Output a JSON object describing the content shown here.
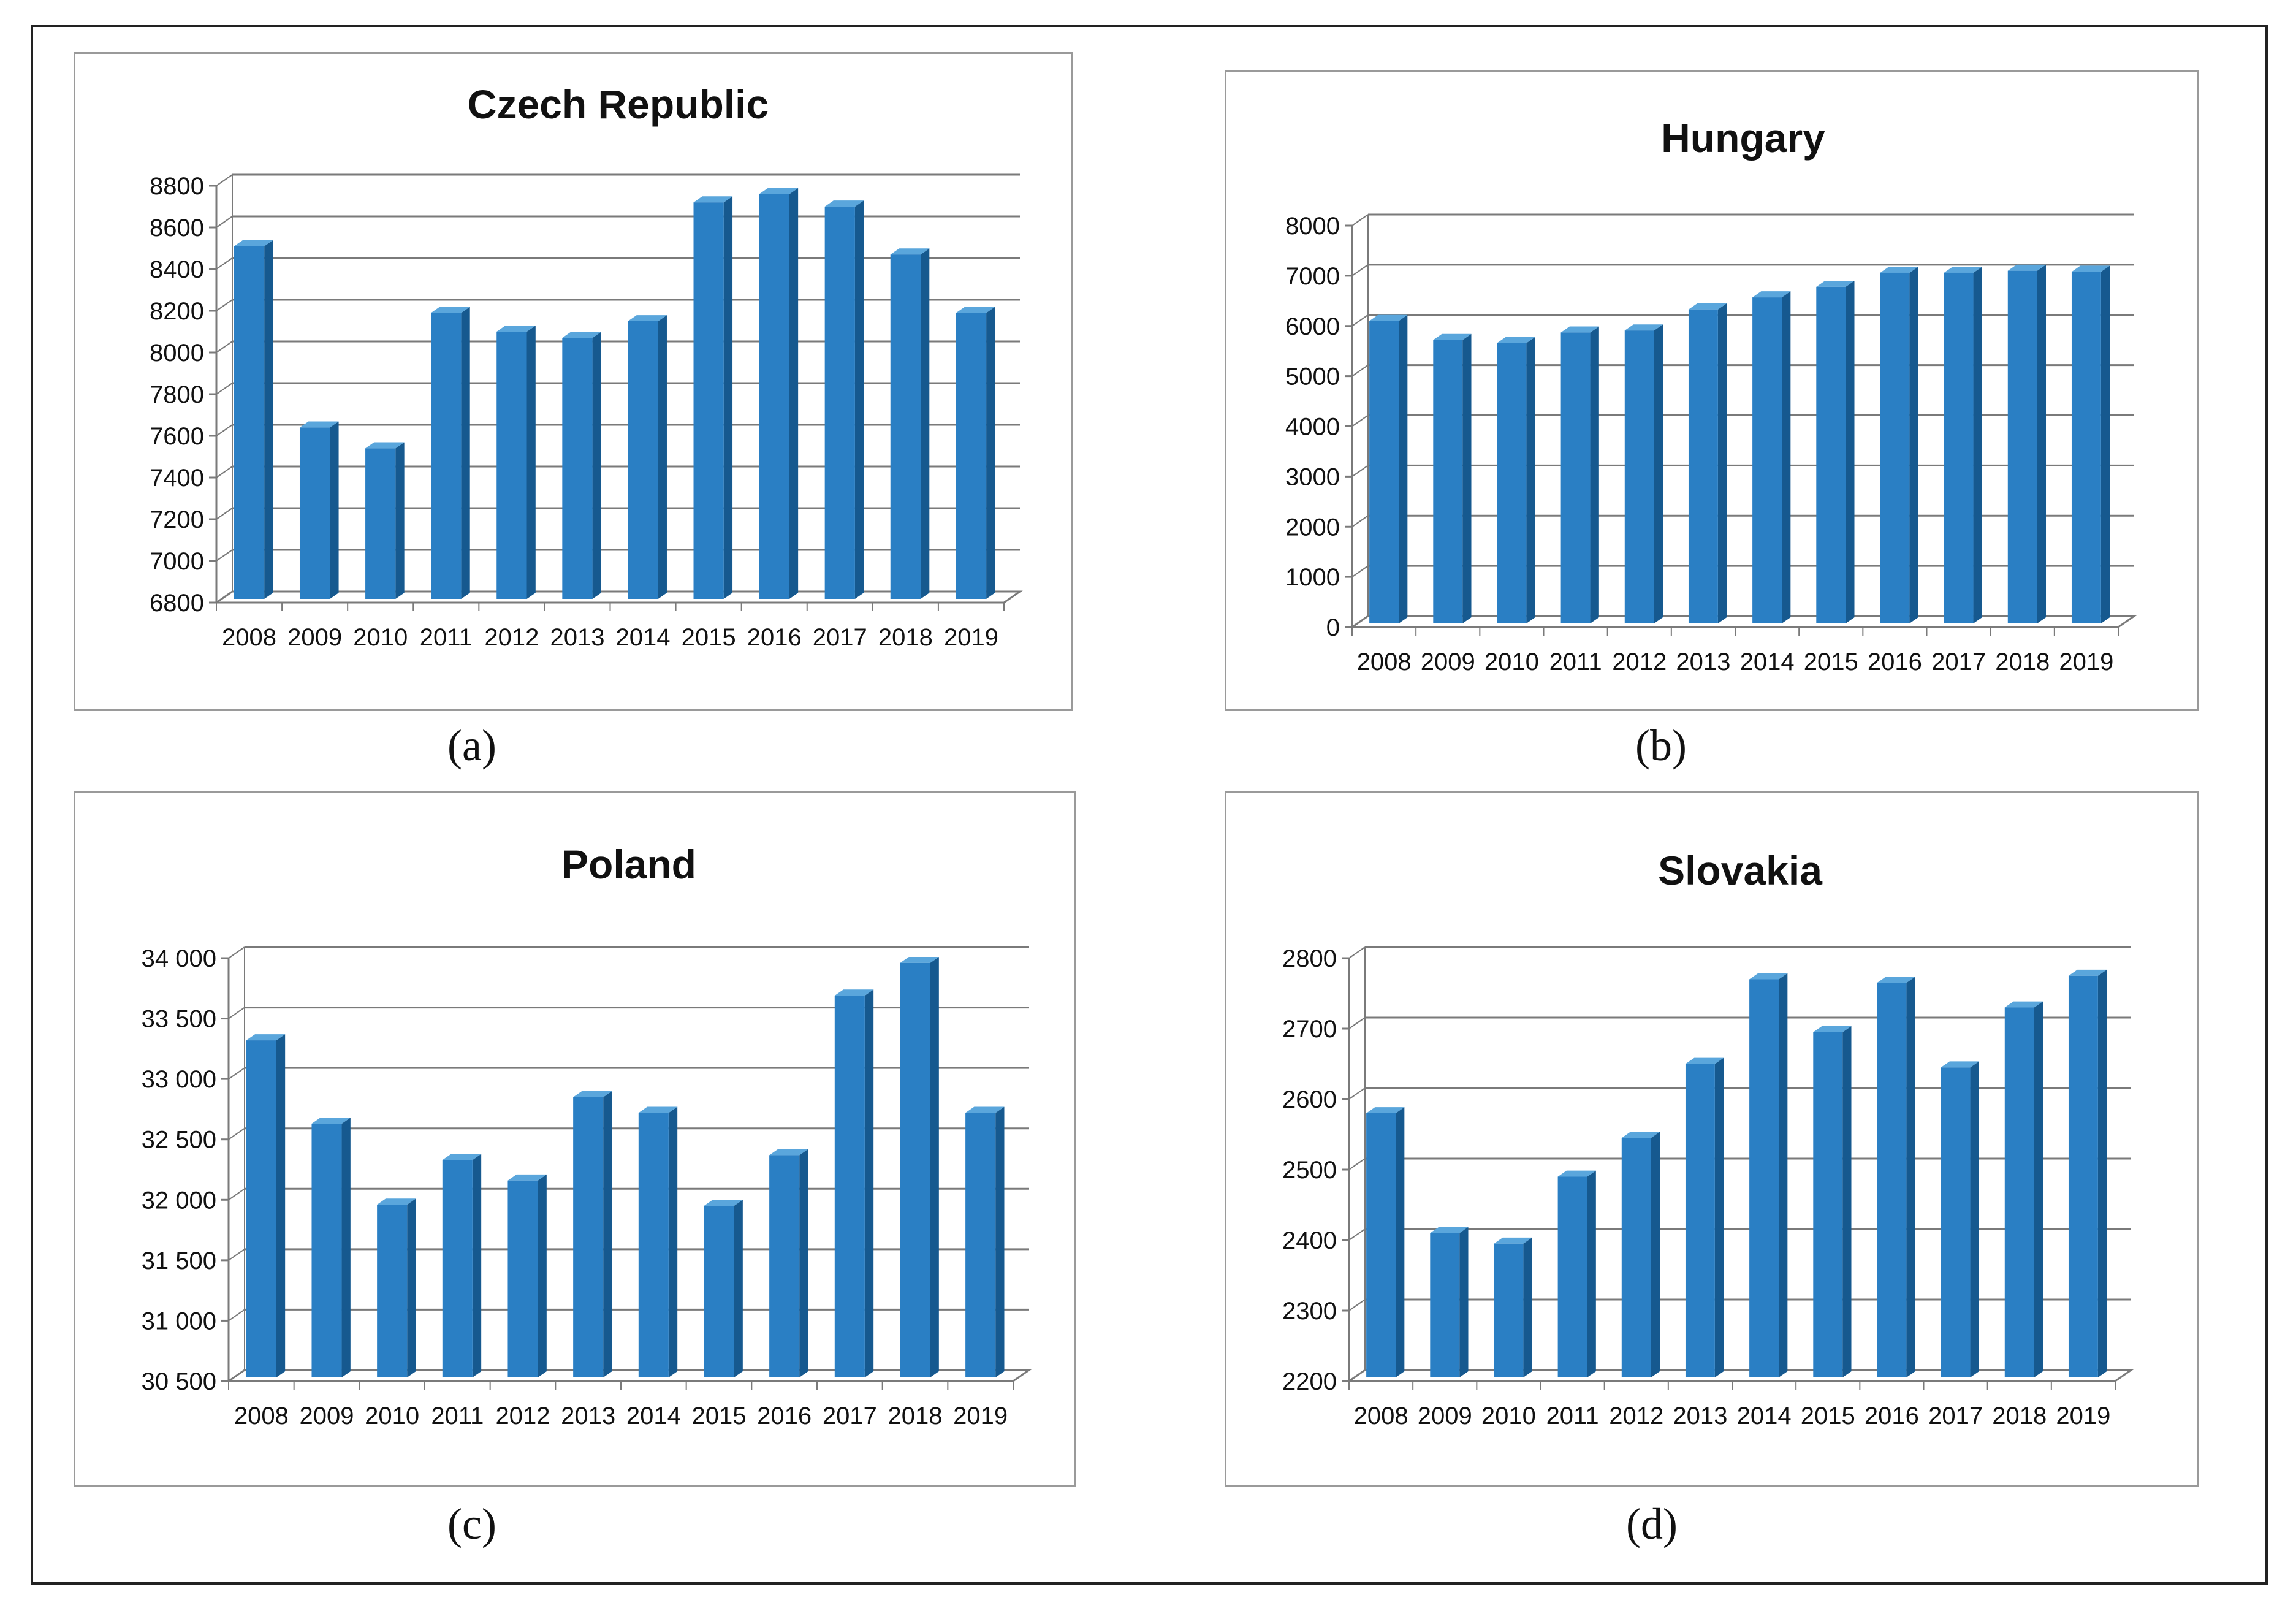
{
  "colors": {
    "bar_front": "#2a7fc4",
    "bar_side": "#16598f",
    "bar_top": "#5aa6dc",
    "grid": "#7a7a7a",
    "text": "#111111"
  },
  "chart_data": [
    {
      "id": "a",
      "type": "bar",
      "caption": "(a)",
      "title": "Czech Republic",
      "categories": [
        "2008",
        "2009",
        "2010",
        "2011",
        "2012",
        "2013",
        "2014",
        "2015",
        "2016",
        "2017",
        "2018",
        "2019"
      ],
      "values": [
        8510,
        7640,
        7540,
        8190,
        8100,
        8070,
        8150,
        8720,
        8760,
        8700,
        8470,
        8190
      ],
      "ylim": [
        6800,
        8800
      ],
      "yticks": [
        6800,
        7000,
        7200,
        7400,
        7600,
        7800,
        8000,
        8200,
        8400,
        8600,
        8800
      ],
      "ytick_labels": [
        "6800",
        "7000",
        "7200",
        "7400",
        "7600",
        "7800",
        "8000",
        "8200",
        "8400",
        "8600",
        "8800"
      ],
      "xlabel": "",
      "ylabel": "",
      "grid": true,
      "legend": "none"
    },
    {
      "id": "b",
      "type": "bar",
      "caption": "(b)",
      "title": "Hungary",
      "categories": [
        "2008",
        "2009",
        "2010",
        "2011",
        "2012",
        "2013",
        "2014",
        "2015",
        "2016",
        "2017",
        "2018",
        "2019"
      ],
      "values": [
        6100,
        5720,
        5660,
        5870,
        5910,
        6330,
        6570,
        6780,
        7060,
        7060,
        7100,
        7080
      ],
      "ylim": [
        0,
        8000
      ],
      "yticks": [
        0,
        1000,
        2000,
        3000,
        4000,
        5000,
        6000,
        7000,
        8000
      ],
      "ytick_labels": [
        "0",
        "1000",
        "2000",
        "3000",
        "4000",
        "5000",
        "6000",
        "7000",
        "8000"
      ],
      "xlabel": "",
      "ylabel": "",
      "grid": true,
      "legend": "none"
    },
    {
      "id": "c",
      "type": "bar",
      "caption": "(c)",
      "title": "Poland",
      "categories": [
        "2008",
        "2009",
        "2010",
        "2011",
        "2012",
        "2013",
        "2014",
        "2015",
        "2016",
        "2017",
        "2018",
        "2019"
      ],
      "values": [
        33320,
        32630,
        31960,
        32330,
        32160,
        32850,
        32720,
        31950,
        32370,
        33690,
        33960,
        32720
      ],
      "ylim": [
        30500,
        34000
      ],
      "yticks": [
        30500,
        31000,
        31500,
        32000,
        32500,
        33000,
        33500,
        34000
      ],
      "ytick_labels": [
        "30 500",
        "31 000",
        "31 500",
        "32 000",
        "32 500",
        "33 000",
        "33 500",
        "34 000"
      ],
      "xlabel": "",
      "ylabel": "",
      "grid": true,
      "legend": "none"
    },
    {
      "id": "d",
      "type": "bar",
      "caption": "(d)",
      "title": "Slovakia",
      "categories": [
        "2008",
        "2009",
        "2010",
        "2011",
        "2012",
        "2013",
        "2014",
        "2015",
        "2016",
        "2017",
        "2018",
        "2019"
      ],
      "values": [
        2580,
        2410,
        2395,
        2490,
        2545,
        2650,
        2770,
        2695,
        2765,
        2645,
        2730,
        2775
      ],
      "ylim": [
        2200,
        2800
      ],
      "yticks": [
        2200,
        2300,
        2400,
        2500,
        2600,
        2700,
        2800
      ],
      "ytick_labels": [
        "2200",
        "2300",
        "2400",
        "2500",
        "2600",
        "2700",
        "2800"
      ],
      "xlabel": "",
      "ylabel": "",
      "grid": true,
      "legend": "none"
    }
  ]
}
